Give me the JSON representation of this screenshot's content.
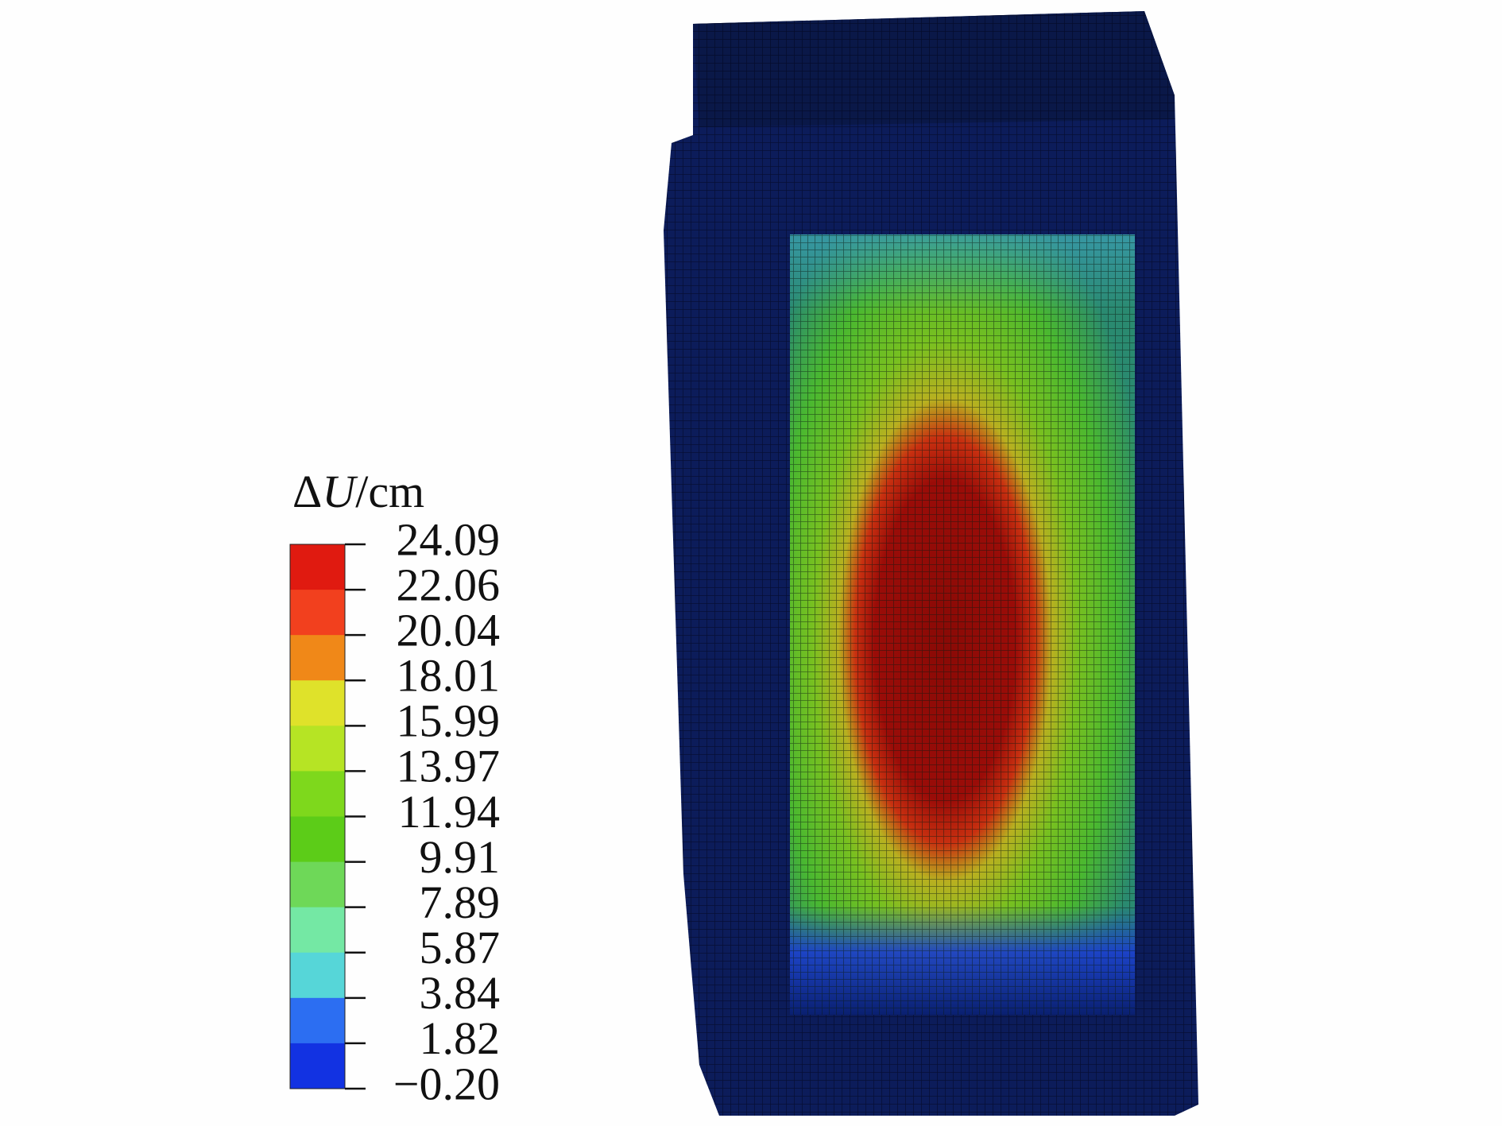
{
  "legend": {
    "title": {
      "symbol": "Δ",
      "variable": "U",
      "unit": "/cm"
    },
    "levels": [
      "24.09",
      "22.06",
      "20.04",
      "18.01",
      "15.99",
      "13.97",
      "11.94",
      "9.91",
      "7.89",
      "5.87",
      "3.84",
      "1.82",
      "−0.20"
    ],
    "colors": [
      "#e01a10",
      "#f2401e",
      "#f08818",
      "#dfe22a",
      "#b6e424",
      "#7ed81c",
      "#5ccc18",
      "#6ed858",
      "#74e8a4",
      "#56d6d8",
      "#2c6ef2",
      "#1232e2"
    ]
  }
}
